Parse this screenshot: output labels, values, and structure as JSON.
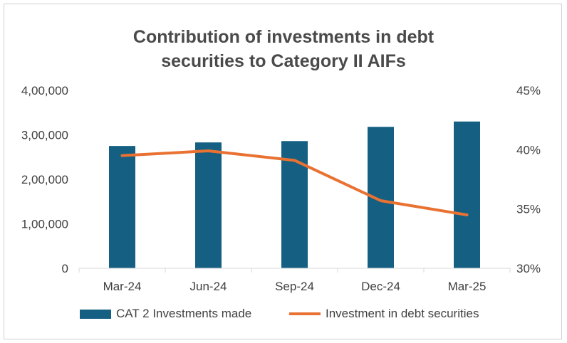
{
  "chart_data": {
    "type": "bar",
    "title_lines": [
      "Contribution of investments in debt",
      "securities to Category II AIFs"
    ],
    "categories": [
      "Mar-24",
      "Jun-24",
      "Sep-24",
      "Dec-24",
      "Mar-25"
    ],
    "series": [
      {
        "name": "CAT 2 Investments made",
        "type": "bar",
        "axis": "left",
        "values": [
          275000,
          283000,
          286000,
          318000,
          330000
        ],
        "color": "#156082"
      },
      {
        "name": "Investment in debt securities",
        "type": "line",
        "axis": "right",
        "values": [
          39.5,
          39.9,
          39.1,
          35.7,
          34.5
        ],
        "color": "#e97132"
      }
    ],
    "y_left": {
      "ylim": [
        0,
        400000
      ],
      "ticks": [
        0,
        100000,
        200000,
        300000,
        400000
      ],
      "tick_labels": [
        "0",
        "1,00,000",
        "2,00,000",
        "3,00,000",
        "4,00,000"
      ]
    },
    "y_right": {
      "ylim": [
        30,
        45
      ],
      "ticks": [
        30,
        35,
        40,
        45
      ],
      "tick_labels": [
        "30%",
        "35%",
        "40%",
        "45%"
      ]
    },
    "grid": false,
    "legend": "bottom"
  }
}
